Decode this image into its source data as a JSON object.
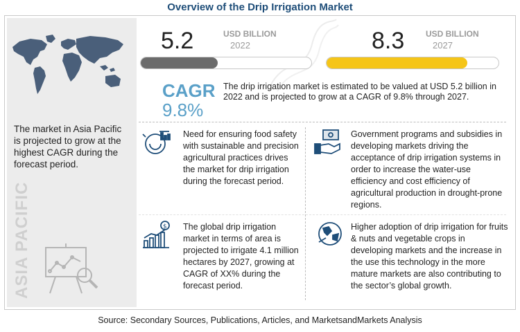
{
  "title": "Overview of the Drip Irrigation Market",
  "left_panel": {
    "description": "The market in Asia Pacific is projected to grow at the highest CAGR during the forecast period.",
    "vertical_label": "ASIA PACIFIC"
  },
  "market_2022": {
    "value": "5.2",
    "unit": "USD BILLION",
    "year": "2022",
    "level": 0.45,
    "color": "#6b6b6b"
  },
  "market_2027": {
    "value": "8.3",
    "unit": "USD BILLION",
    "year": "2027",
    "level": 0.82,
    "color": "#f5c518"
  },
  "cagr": {
    "label": "CAGR",
    "value": "9.8%",
    "description": "The drip irrigation market is estimated to be valued at USD 5.2 billion in 2022 and is projected to grow at a CAGR of 9.8% through 2027."
  },
  "drivers": [
    {
      "icon": "food-safety-icon",
      "text": "Need for ensuring food safety with sustainable and precision agricultural practices drives the market for drip irrigation during the forecast period."
    },
    {
      "icon": "government-subsidy-icon",
      "text": "Government programs and subsidies in developing markets driving the acceptance of drip irrigation systems in order to increase the water-use efficiency and cost efficiency of agricultural production in drought-prone regions."
    },
    {
      "icon": "growth-chart-icon",
      "text": "The global drip irrigation market in terms of area is projected to irrigate 4.1 million hectares by 2027, growing at CAGR of XX% during the forecast period."
    },
    {
      "icon": "globe-icon",
      "text": "Higher adoption of drip irrigation for fruits & nuts and vegetable crops in developing markets and the increase in the use this technology in the more mature markets are also contributing to the sector’s global growth."
    }
  ],
  "source": "Source: Secondary Sources, Publications, Articles, and MarketsandMarkets Analysis",
  "colors": {
    "title": "#1f4e79",
    "cagr": "#5aa0c8",
    "accent_yellow": "#f5c518",
    "dark_bar": "#6b6b6b"
  }
}
